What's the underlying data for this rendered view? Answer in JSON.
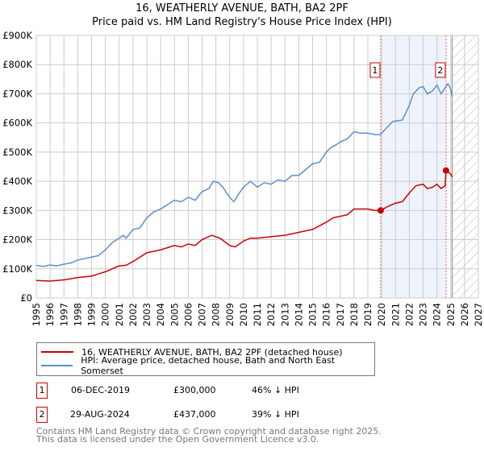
{
  "chart_data": {
    "type": "line",
    "title": "16, WEATHERLY AVENUE, BATH, BA2 2PF",
    "subtitle": "Price paid vs. HM Land Registry's House Price Index (HPI)",
    "xlim": [
      1995,
      2027
    ],
    "ylim": [
      0,
      900000
    ],
    "x_ticks": [
      "1995",
      "1996",
      "1997",
      "1998",
      "1999",
      "2000",
      "2001",
      "2002",
      "2003",
      "2004",
      "2005",
      "2006",
      "2007",
      "2008",
      "2009",
      "2010",
      "2011",
      "2012",
      "2013",
      "2014",
      "2015",
      "2016",
      "2017",
      "2018",
      "2019",
      "2020",
      "2021",
      "2022",
      "2023",
      "2024",
      "2025",
      "2026",
      "2027"
    ],
    "y_ticks": [
      "£0",
      "£100K",
      "£200K",
      "£300K",
      "£400K",
      "£500K",
      "£600K",
      "£700K",
      "£800K",
      "£900K"
    ],
    "grid": true,
    "series": [
      {
        "name": "16, WEATHERLY AVENUE, BATH, BA2 2PF (detached house)",
        "color": "#cc0000",
        "x": [
          1995,
          1996,
          1997,
          1998,
          1999,
          2000,
          2001,
          2001.5,
          2002,
          2003,
          2004,
          2005,
          2005.5,
          2006,
          2006.5,
          2007,
          2007.7,
          2008.3,
          2009,
          2009.4,
          2010,
          2010.5,
          2011,
          2012,
          2013,
          2014,
          2015,
          2016,
          2016.5,
          2017,
          2017.5,
          2018,
          2018.5,
          2019,
          2019.5,
          2019.93,
          2020.5,
          2021,
          2021.5,
          2022,
          2022.5,
          2023,
          2023.3,
          2023.7,
          2024,
          2024.3,
          2024.6,
          2024.66,
          2025,
          2025.1
        ],
        "y": [
          60,
          58,
          62,
          70,
          75,
          90,
          110,
          112,
          125,
          155,
          165,
          180,
          175,
          185,
          180,
          200,
          215,
          205,
          180,
          175,
          195,
          205,
          205,
          210,
          215,
          225,
          235,
          260,
          275,
          280,
          285,
          305,
          305,
          305,
          300,
          300,
          315,
          325,
          330,
          360,
          385,
          390,
          375,
          380,
          390,
          375,
          385,
          437,
          425,
          415
        ]
      },
      {
        "name": "HPI: Average price, detached house, Bath and North East Somerset",
        "color": "#5b8fd1",
        "x": [
          1995,
          1995.5,
          1996,
          1996.5,
          1997,
          1997.5,
          1998,
          1999,
          1999.5,
          2000,
          2000.5,
          2001,
          2001.3,
          2001.5,
          2002,
          2002.5,
          2003,
          2003.5,
          2004,
          2004.5,
          2005,
          2005.5,
          2006,
          2006.5,
          2007,
          2007.5,
          2007.8,
          2008.2,
          2008.5,
          2009,
          2009.3,
          2009.7,
          2010,
          2010.5,
          2011,
          2011.5,
          2012,
          2012.5,
          2013,
          2013.5,
          2014,
          2014.5,
          2015,
          2015.5,
          2016,
          2016.3,
          2016.7,
          2017,
          2017.5,
          2018,
          2018.5,
          2019,
          2019.5,
          2019.9,
          2020.3,
          2020.8,
          2021.5,
          2022,
          2022.3,
          2022.7,
          2023,
          2023.3,
          2023.7,
          2024,
          2024.3,
          2024.6,
          2024.8,
          2025,
          2025.1
        ],
        "y": [
          112,
          108,
          113,
          110,
          116,
          120,
          130,
          140,
          145,
          165,
          190,
          205,
          215,
          205,
          235,
          240,
          275,
          295,
          305,
          320,
          335,
          330,
          345,
          335,
          365,
          375,
          400,
          395,
          380,
          345,
          330,
          360,
          380,
          400,
          380,
          395,
          390,
          405,
          400,
          420,
          420,
          440,
          460,
          465,
          500,
          515,
          525,
          535,
          545,
          570,
          565,
          565,
          560,
          560,
          580,
          605,
          610,
          660,
          700,
          720,
          725,
          700,
          710,
          730,
          700,
          720,
          735,
          715,
          690
        ]
      }
    ],
    "y_units": "£K",
    "annotations": [
      {
        "label": "1",
        "x": 2019.93,
        "y": 300
      },
      {
        "label": "2",
        "x": 2024.66,
        "y": 437
      }
    ],
    "shaded_range": [
      2019.93,
      2024.66
    ],
    "hatched_from": 2025.1
  },
  "legend": {
    "items": [
      "16, WEATHERLY AVENUE, BATH, BA2 2PF (detached house)",
      "HPI: Average price, detached house, Bath and North East Somerset"
    ]
  },
  "transactions": [
    {
      "n": "1",
      "date": "06-DEC-2019",
      "price": "£300,000",
      "hpi": "46% ↓ HPI"
    },
    {
      "n": "2",
      "date": "29-AUG-2024",
      "price": "£437,000",
      "hpi": "39% ↓ HPI"
    }
  ],
  "footer": {
    "line1": "Contains HM Land Registry data © Crown copyright and database right 2025.",
    "line2": "This data is licensed under the Open Government Licence v3.0."
  }
}
